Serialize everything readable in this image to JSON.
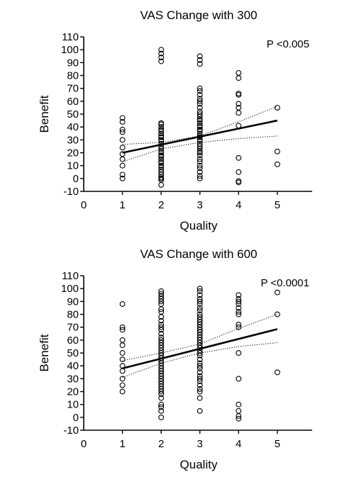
{
  "chart_data": [
    {
      "type": "scatter",
      "title": "VAS Change with 300",
      "xlabel": "Quality",
      "ylabel": "Benefit",
      "annotation": "P <0.005",
      "xlim": [
        0,
        5.9
      ],
      "ylim": [
        -10,
        110
      ],
      "xticks": [
        0,
        1,
        2,
        3,
        4,
        5
      ],
      "yticks": [
        -10,
        0,
        10,
        20,
        30,
        40,
        50,
        60,
        70,
        80,
        90,
        100,
        110
      ],
      "grid": false,
      "points": [
        [
          1,
          47
        ],
        [
          1,
          44
        ],
        [
          1,
          38
        ],
        [
          1,
          36
        ],
        [
          1,
          30
        ],
        [
          1,
          24
        ],
        [
          1,
          19
        ],
        [
          1,
          15
        ],
        [
          1,
          10
        ],
        [
          1,
          3
        ],
        [
          1,
          0
        ],
        [
          2,
          100
        ],
        [
          2,
          97
        ],
        [
          2,
          94
        ],
        [
          2,
          91
        ],
        [
          2,
          43
        ],
        [
          2,
          42
        ],
        [
          2,
          40
        ],
        [
          2,
          38
        ],
        [
          2,
          37
        ],
        [
          2,
          35
        ],
        [
          2,
          33
        ],
        [
          2,
          32
        ],
        [
          2,
          30
        ],
        [
          2,
          29
        ],
        [
          2,
          27
        ],
        [
          2,
          25
        ],
        [
          2,
          23
        ],
        [
          2,
          21
        ],
        [
          2,
          20
        ],
        [
          2,
          18
        ],
        [
          2,
          17
        ],
        [
          2,
          15
        ],
        [
          2,
          13
        ],
        [
          2,
          12
        ],
        [
          2,
          10
        ],
        [
          2,
          9
        ],
        [
          2,
          7
        ],
        [
          2,
          5
        ],
        [
          2,
          3
        ],
        [
          2,
          1
        ],
        [
          2,
          0
        ],
        [
          2,
          -1
        ],
        [
          2,
          -5
        ],
        [
          3,
          95
        ],
        [
          3,
          92
        ],
        [
          3,
          89
        ],
        [
          3,
          70
        ],
        [
          3,
          68
        ],
        [
          3,
          65
        ],
        [
          3,
          62
        ],
        [
          3,
          60
        ],
        [
          3,
          58
        ],
        [
          3,
          55
        ],
        [
          3,
          52
        ],
        [
          3,
          50
        ],
        [
          3,
          48
        ],
        [
          3,
          46
        ],
        [
          3,
          45
        ],
        [
          3,
          43
        ],
        [
          3,
          41
        ],
        [
          3,
          40
        ],
        [
          3,
          38
        ],
        [
          3,
          37
        ],
        [
          3,
          35
        ],
        [
          3,
          33
        ],
        [
          3,
          32
        ],
        [
          3,
          30
        ],
        [
          3,
          29
        ],
        [
          3,
          27
        ],
        [
          3,
          25
        ],
        [
          3,
          23
        ],
        [
          3,
          21
        ],
        [
          3,
          20
        ],
        [
          3,
          18
        ],
        [
          3,
          15
        ],
        [
          3,
          13
        ],
        [
          3,
          10
        ],
        [
          3,
          8
        ],
        [
          3,
          5
        ],
        [
          3,
          2
        ],
        [
          3,
          0
        ],
        [
          4,
          82
        ],
        [
          4,
          78
        ],
        [
          4,
          66
        ],
        [
          4,
          65
        ],
        [
          4,
          58
        ],
        [
          4,
          55
        ],
        [
          4,
          51
        ],
        [
          4,
          41
        ],
        [
          4,
          16
        ],
        [
          4,
          5
        ],
        [
          4,
          -2
        ],
        [
          4,
          -3
        ],
        [
          5,
          55
        ],
        [
          5,
          21
        ],
        [
          5,
          11
        ]
      ],
      "fit": {
        "x": [
          1,
          5
        ],
        "y": [
          20,
          45
        ]
      },
      "ci_upper": {
        "x": [
          1,
          2,
          3,
          4,
          5
        ],
        "y": [
          26.5,
          28,
          33,
          44,
          56
        ]
      },
      "ci_lower": {
        "x": [
          1,
          2,
          3,
          4,
          5
        ],
        "y": [
          13,
          23,
          28,
          31,
          33
        ]
      }
    },
    {
      "type": "scatter",
      "title": "VAS Change with 600",
      "xlabel": "Quality",
      "ylabel": "Benefit",
      "annotation": "P <0.0001",
      "xlim": [
        0,
        5.9
      ],
      "ylim": [
        -10,
        110
      ],
      "xticks": [
        0,
        1,
        2,
        3,
        4,
        5
      ],
      "yticks": [
        -10,
        0,
        10,
        20,
        30,
        40,
        50,
        60,
        70,
        80,
        90,
        100,
        110
      ],
      "grid": false,
      "points": [
        [
          1,
          88
        ],
        [
          1,
          70
        ],
        [
          1,
          68
        ],
        [
          1,
          60
        ],
        [
          1,
          56
        ],
        [
          1,
          50
        ],
        [
          1,
          45
        ],
        [
          1,
          40
        ],
        [
          1,
          36
        ],
        [
          1,
          30
        ],
        [
          1,
          25
        ],
        [
          1,
          20
        ],
        [
          2,
          98
        ],
        [
          2,
          96
        ],
        [
          2,
          94
        ],
        [
          2,
          92
        ],
        [
          2,
          90
        ],
        [
          2,
          88
        ],
        [
          2,
          84
        ],
        [
          2,
          82
        ],
        [
          2,
          78
        ],
        [
          2,
          75
        ],
        [
          2,
          72
        ],
        [
          2,
          70
        ],
        [
          2,
          68
        ],
        [
          2,
          65
        ],
        [
          2,
          62
        ],
        [
          2,
          60
        ],
        [
          2,
          58
        ],
        [
          2,
          56
        ],
        [
          2,
          54
        ],
        [
          2,
          52
        ],
        [
          2,
          50
        ],
        [
          2,
          48
        ],
        [
          2,
          46
        ],
        [
          2,
          44
        ],
        [
          2,
          42
        ],
        [
          2,
          40
        ],
        [
          2,
          38
        ],
        [
          2,
          36
        ],
        [
          2,
          34
        ],
        [
          2,
          32
        ],
        [
          2,
          30
        ],
        [
          2,
          28
        ],
        [
          2,
          26
        ],
        [
          2,
          24
        ],
        [
          2,
          22
        ],
        [
          2,
          20
        ],
        [
          2,
          18
        ],
        [
          2,
          15
        ],
        [
          2,
          10
        ],
        [
          2,
          8
        ],
        [
          2,
          5
        ],
        [
          2,
          0
        ],
        [
          3,
          100
        ],
        [
          3,
          98
        ],
        [
          3,
          95
        ],
        [
          3,
          92
        ],
        [
          3,
          90
        ],
        [
          3,
          88
        ],
        [
          3,
          85
        ],
        [
          3,
          83
        ],
        [
          3,
          80
        ],
        [
          3,
          78
        ],
        [
          3,
          76
        ],
        [
          3,
          74
        ],
        [
          3,
          72
        ],
        [
          3,
          70
        ],
        [
          3,
          68
        ],
        [
          3,
          66
        ],
        [
          3,
          64
        ],
        [
          3,
          62
        ],
        [
          3,
          60
        ],
        [
          3,
          58
        ],
        [
          3,
          56
        ],
        [
          3,
          54
        ],
        [
          3,
          52
        ],
        [
          3,
          50
        ],
        [
          3,
          48
        ],
        [
          3,
          45
        ],
        [
          3,
          42
        ],
        [
          3,
          40
        ],
        [
          3,
          38
        ],
        [
          3,
          35
        ],
        [
          3,
          32
        ],
        [
          3,
          30
        ],
        [
          3,
          28
        ],
        [
          3,
          25
        ],
        [
          3,
          22
        ],
        [
          3,
          20
        ],
        [
          3,
          15
        ],
        [
          3,
          5
        ],
        [
          4,
          95
        ],
        [
          4,
          92
        ],
        [
          4,
          90
        ],
        [
          4,
          88
        ],
        [
          4,
          85
        ],
        [
          4,
          82
        ],
        [
          4,
          80
        ],
        [
          4,
          72
        ],
        [
          4,
          70
        ],
        [
          4,
          50
        ],
        [
          4,
          30
        ],
        [
          4,
          10
        ],
        [
          4,
          5
        ],
        [
          4,
          1
        ],
        [
          4,
          -1
        ],
        [
          5,
          97
        ],
        [
          5,
          80
        ],
        [
          5,
          35
        ]
      ],
      "fit": {
        "x": [
          1,
          5
        ],
        "y": [
          38,
          68.5
        ]
      },
      "ci_upper": {
        "x": [
          1,
          2,
          3,
          4,
          5
        ],
        "y": [
          44,
          50,
          57,
          69,
          80
        ]
      },
      "ci_lower": {
        "x": [
          1,
          2,
          3,
          4,
          5
        ],
        "y": [
          31,
          42,
          50,
          55,
          58
        ]
      }
    }
  ]
}
